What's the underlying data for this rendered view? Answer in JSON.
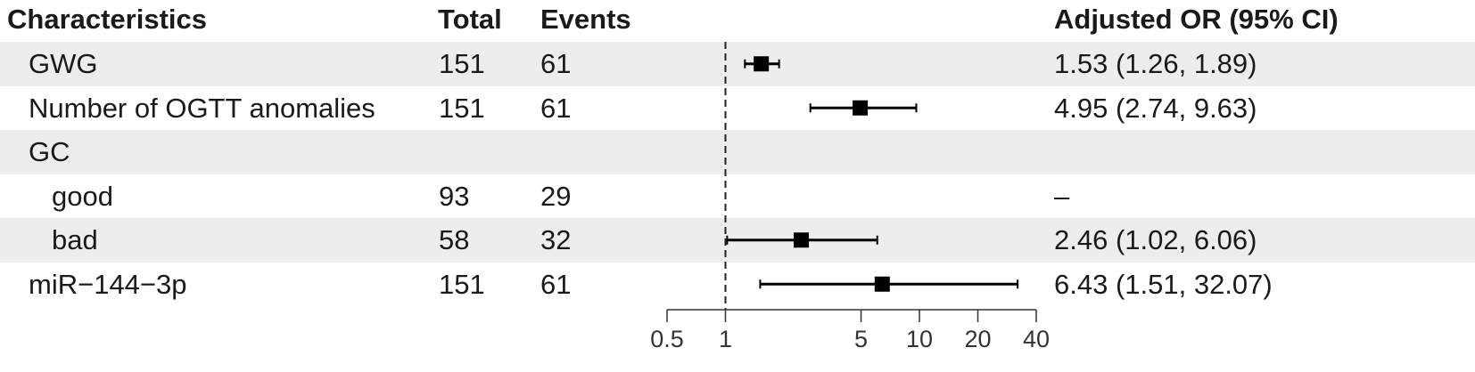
{
  "chart_data": {
    "type": "forest",
    "title": "",
    "columns": [
      "Characteristics",
      "Total",
      "Events",
      "Adjusted OR (95% CI)"
    ],
    "rows": [
      {
        "label": "GWG",
        "indent": false,
        "total": "151",
        "events": "61",
        "or_text": "1.53 (1.26, 1.89)",
        "or": 1.53,
        "lo": 1.26,
        "hi": 1.89,
        "shaded": true
      },
      {
        "label": "Number of OGTT anomalies",
        "indent": false,
        "total": "151",
        "events": "61",
        "or_text": "4.95 (2.74, 9.63)",
        "or": 4.95,
        "lo": 2.74,
        "hi": 9.63,
        "shaded": false
      },
      {
        "label": "GC",
        "indent": false,
        "total": "",
        "events": "",
        "or_text": "",
        "or": null,
        "lo": null,
        "hi": null,
        "shaded": true
      },
      {
        "label": "good",
        "indent": true,
        "total": "93",
        "events": "29",
        "or_text": "–",
        "or": null,
        "lo": null,
        "hi": null,
        "shaded": false
      },
      {
        "label": "bad",
        "indent": true,
        "total": "58",
        "events": "32",
        "or_text": "2.46 (1.02, 6.06)",
        "or": 2.46,
        "lo": 1.02,
        "hi": 6.06,
        "shaded": true
      },
      {
        "label": "miR−144−3p",
        "indent": false,
        "total": "151",
        "events": "61",
        "or_text": "6.43 (1.51, 32.07)",
        "or": 6.43,
        "lo": 1.51,
        "hi": 32.07,
        "shaded": false
      }
    ],
    "x_scale": "log",
    "xlim": [
      0.5,
      40
    ],
    "x_ticks": [
      0.5,
      1,
      5,
      10,
      20,
      40
    ],
    "x_tick_labels": [
      "0.5",
      "1",
      "5",
      "10",
      "20",
      "40"
    ],
    "reference_line": 1,
    "row_shade_color": "#ebeeeb",
    "marker_color": "#000000"
  }
}
